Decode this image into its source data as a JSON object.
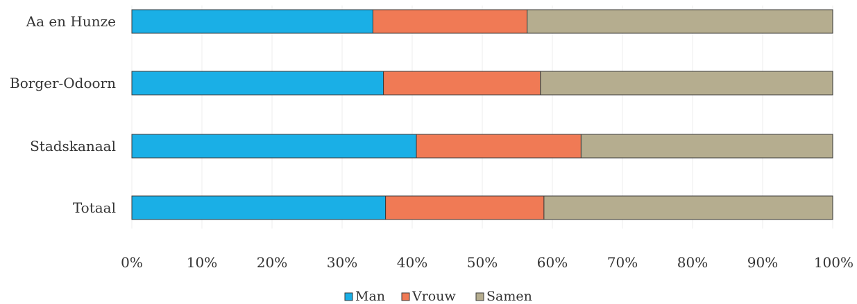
{
  "chart_data": {
    "type": "bar",
    "orientation": "horizontal",
    "stacked": "percent",
    "categories": [
      "Aa en Hunze",
      "Borger-Odoorn",
      "Stadskanaal",
      "Totaal"
    ],
    "series": [
      {
        "name": "Man",
        "color": "#1aafe6",
        "values": [
          34.4,
          35.9,
          40.6,
          36.2
        ]
      },
      {
        "name": "Vrouw",
        "color": "#f07a55",
        "values": [
          22.0,
          22.4,
          23.5,
          22.6
        ]
      },
      {
        "name": "Samen",
        "color": "#b5ad8f",
        "values": [
          43.6,
          41.7,
          35.9,
          41.2
        ]
      }
    ],
    "xlim": [
      0,
      100
    ],
    "xticks": [
      "0%",
      "10%",
      "20%",
      "30%",
      "40%",
      "50%",
      "60%",
      "70%",
      "80%",
      "90%",
      "100%"
    ],
    "grid": true,
    "legend_position": "bottom",
    "title": "",
    "xlabel": "",
    "ylabel": ""
  }
}
